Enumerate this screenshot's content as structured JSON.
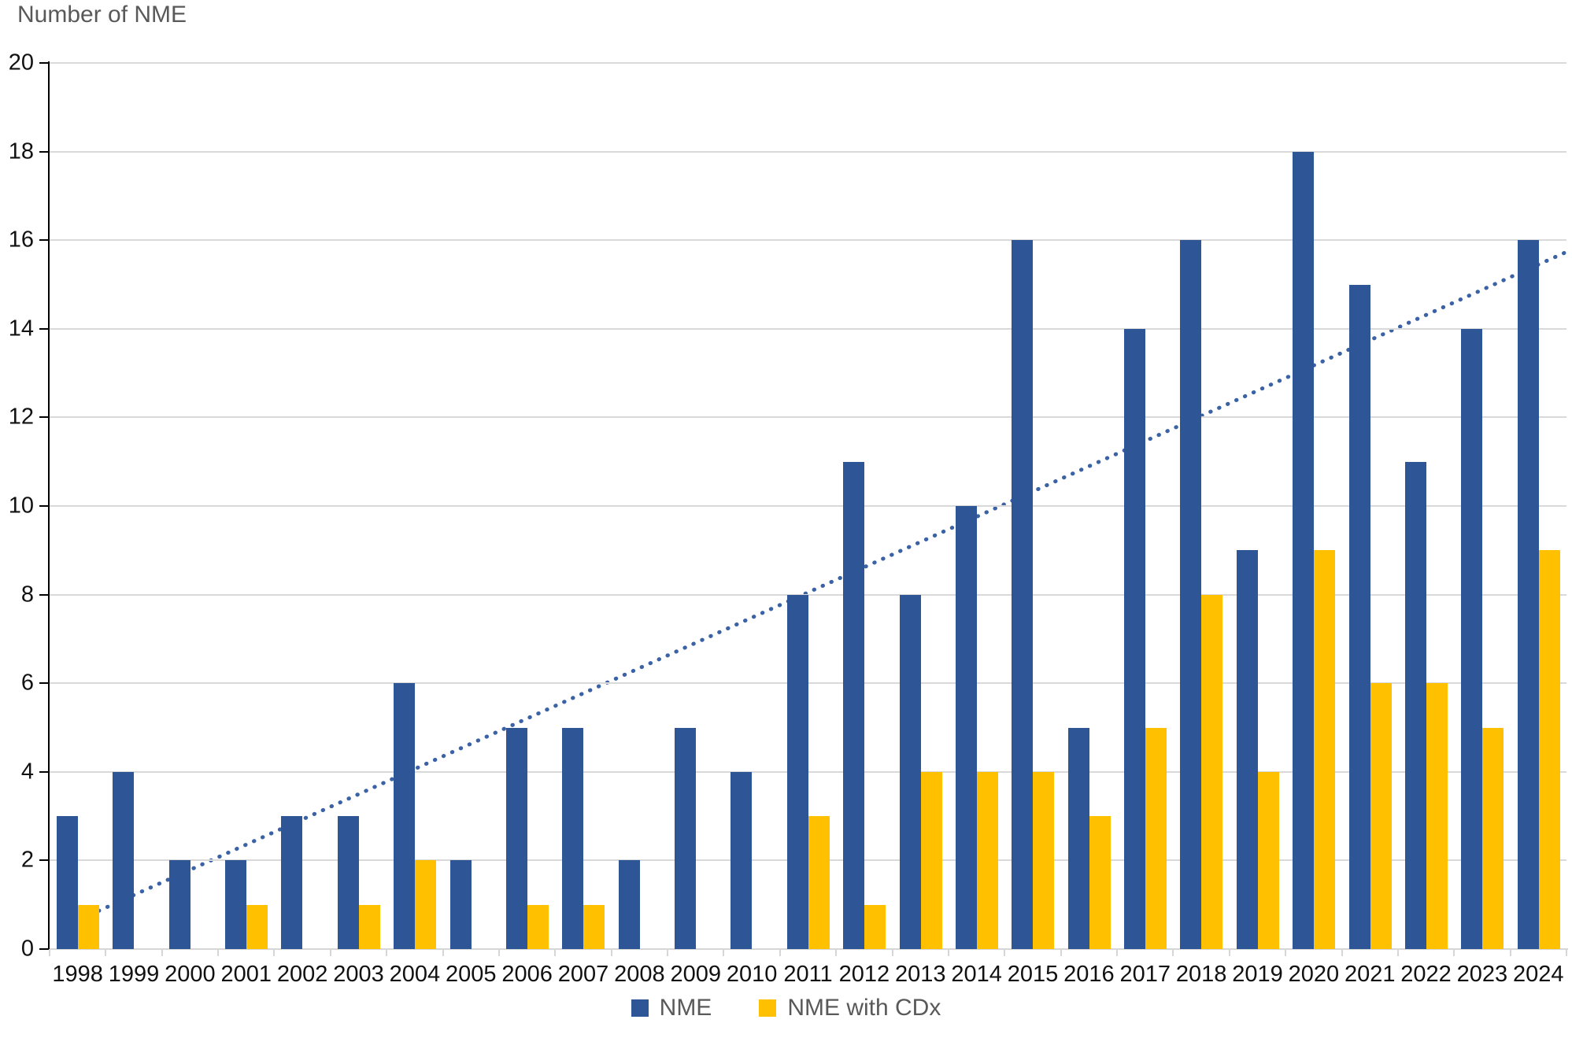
{
  "title": "Number of NME",
  "colors": {
    "nme_bar": "#2E5697",
    "cdx_bar": "#FFC000",
    "gridline": "#D9D9D9",
    "y_axis": "#000000",
    "x_axis": "#D6D6D6",
    "trendline": "#3A62A5",
    "title_text": "#595959",
    "tick_text": "#111111"
  },
  "legend": {
    "items": [
      {
        "label": "NME",
        "color_key": "nme_bar"
      },
      {
        "label": "NME with CDx",
        "color_key": "cdx_bar"
      }
    ]
  },
  "chart_data": {
    "type": "bar",
    "title": "Number of NME",
    "xlabel": "",
    "ylabel": "Number of NME",
    "ylim": [
      0,
      20
    ],
    "ytick_step": 2,
    "grid": true,
    "legend_position": "bottom",
    "categories": [
      1998,
      1999,
      2000,
      2001,
      2002,
      2003,
      2004,
      2005,
      2006,
      2007,
      2008,
      2009,
      2010,
      2011,
      2012,
      2013,
      2014,
      2015,
      2016,
      2017,
      2018,
      2019,
      2020,
      2021,
      2022,
      2023,
      2024
    ],
    "series": [
      {
        "name": "NME",
        "color_key": "nme_bar",
        "values": [
          3,
          4,
          2,
          2,
          3,
          3,
          6,
          2,
          5,
          5,
          2,
          5,
          4,
          8,
          11,
          8,
          10,
          16,
          5,
          14,
          16,
          9,
          18,
          15,
          11,
          14,
          16
        ]
      },
      {
        "name": "NME with CDx",
        "color_key": "cdx_bar",
        "values": [
          1,
          0,
          0,
          1,
          0,
          1,
          2,
          0,
          1,
          1,
          0,
          0,
          0,
          3,
          1,
          4,
          4,
          4,
          3,
          5,
          8,
          4,
          9,
          6,
          6,
          5,
          9
        ]
      }
    ],
    "trendline": {
      "of_series": "NME",
      "style": "dotted",
      "start": {
        "year": 1998,
        "value": 0.65
      },
      "end": {
        "year": 2024,
        "value": 15.45
      }
    }
  }
}
